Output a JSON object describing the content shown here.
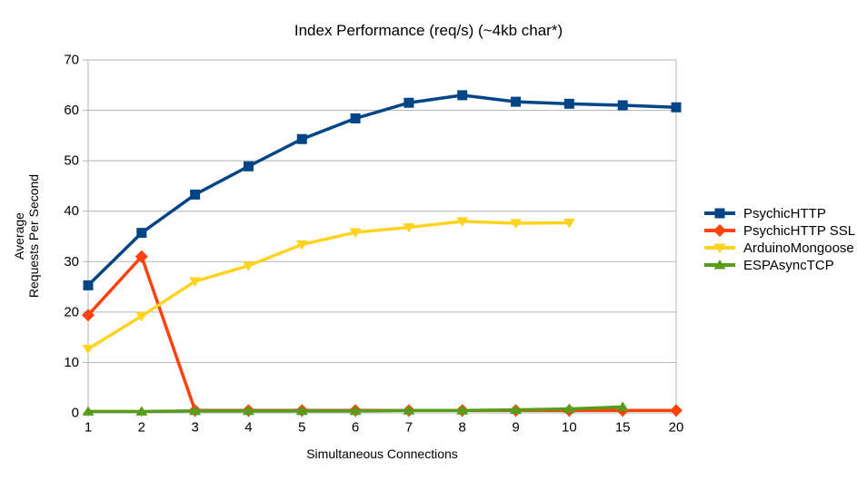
{
  "chart_data": {
    "type": "line",
    "title": "Index Performance (req/s) (~4kb char*)",
    "xlabel": "Simultaneous Connections",
    "ylabel": "Average Requests Per Second",
    "ylabel_lines": [
      "Average",
      "Requests Per Second"
    ],
    "categories": [
      "1",
      "2",
      "3",
      "4",
      "5",
      "6",
      "7",
      "8",
      "9",
      "10",
      "15",
      "20"
    ],
    "ylim": [
      0,
      70
    ],
    "ytick_step": 10,
    "grid": true,
    "legend_position": "right",
    "series": [
      {
        "name": "PsychicHTTP",
        "color": "#004586",
        "marker": "square",
        "values": [
          25.3,
          35.7,
          43.3,
          48.9,
          54.3,
          58.4,
          61.5,
          63.0,
          61.7,
          61.3,
          61.0,
          60.6
        ]
      },
      {
        "name": "PsychicHTTP SSL",
        "color": "#ff420e",
        "marker": "diamond",
        "values": [
          19.4,
          31.0,
          0.5,
          0.5,
          0.5,
          0.5,
          0.5,
          0.5,
          0.5,
          0.5,
          0.5,
          0.5
        ]
      },
      {
        "name": "ArduinoMongoose",
        "color": "#ffd320",
        "marker": "triangle-down",
        "values": [
          12.7,
          19.2,
          26.1,
          29.2,
          33.4,
          35.8,
          36.8,
          38.0,
          37.6,
          37.7,
          null,
          null
        ]
      },
      {
        "name": "ESPAsyncTCP",
        "color": "#579d1c",
        "marker": "triangle-up",
        "values": [
          0.3,
          0.3,
          0.4,
          0.4,
          0.4,
          0.4,
          0.5,
          0.5,
          0.6,
          0.8,
          1.2,
          null
        ]
      }
    ]
  },
  "colors": {
    "grid": "#b3b3b3",
    "text": "#000000",
    "background": "#ffffff"
  }
}
